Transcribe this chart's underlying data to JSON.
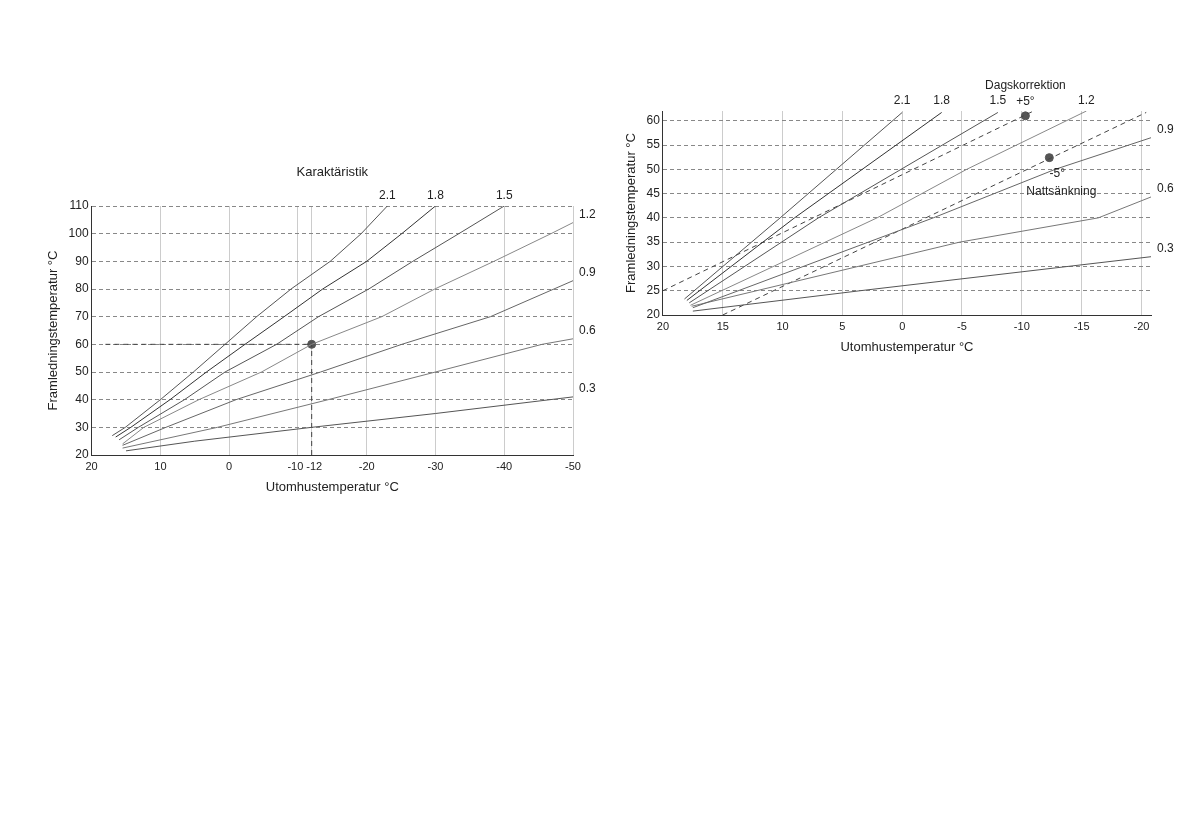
{
  "chart_data": [
    {
      "type": "line",
      "xlabel": "Utomhustemperatur °C",
      "ylabel": "Framledningstemperatur °C",
      "xlim": [
        20,
        -50
      ],
      "xticks": [
        20,
        10,
        0,
        -10,
        -12,
        -20,
        -30,
        -40,
        -50
      ],
      "ylim": [
        20,
        110
      ],
      "yticks": [
        20,
        30,
        40,
        50,
        60,
        70,
        80,
        90,
        100,
        110
      ],
      "grid": true,
      "marker": "none",
      "annotations": [
        "Karaktäristik"
      ],
      "series": [
        {
          "name": "2.1",
          "color": "#555555",
          "x": [
            17,
            15.1,
            10,
            5.2,
            0.6,
            -4,
            -9,
            -14.7,
            -19.2,
            -23
          ],
          "values": [
            27,
            30,
            40,
            50,
            60,
            70,
            80,
            90,
            100,
            110
          ]
        },
        {
          "name": "1.8",
          "color": "#333333",
          "x": [
            16.5,
            14.3,
            8.6,
            3.3,
            -2.3,
            -8,
            -13.6,
            -20,
            -25.1,
            -30
          ],
          "values": [
            26.5,
            30,
            40,
            50,
            60,
            70,
            80,
            90,
            100,
            110
          ]
        },
        {
          "name": "1.5",
          "color": "#555555",
          "x": [
            16,
            13.2,
            6.5,
            0.6,
            -6.9,
            -13,
            -20.3,
            -26.7,
            -33.4,
            -40
          ],
          "values": [
            25.5,
            30,
            40,
            50,
            60,
            70,
            80,
            90,
            100,
            110
          ]
        },
        {
          "name": "1.2",
          "color": "#888888",
          "x": [
            15.5,
            12.4,
            4.4,
            -4.7,
            -12,
            -22.2,
            -29.9,
            -38.5,
            -46.8,
            -50
          ],
          "values": [
            24,
            30,
            40,
            50,
            60,
            70,
            80,
            90,
            100,
            104
          ]
        },
        {
          "name": "0.9",
          "color": "#666666",
          "x": [
            15.5,
            9.2,
            -1,
            -13.3,
            -25.1,
            -38,
            -50
          ],
          "values": [
            23.5,
            30,
            40,
            50,
            60,
            70,
            83
          ]
        },
        {
          "name": "0.6",
          "color": "#777777",
          "x": [
            15.5,
            1.7,
            -14.4,
            -30,
            -45.5,
            -50
          ],
          "values": [
            22.5,
            30,
            40,
            50,
            60,
            62
          ]
        },
        {
          "name": "0.3",
          "color": "#555555",
          "x": [
            15,
            5,
            -12,
            -30,
            -50
          ],
          "values": [
            21.5,
            25,
            30,
            35,
            41
          ]
        },
        {
          "type": "line",
          "line_style": "dashed",
          "color": "#444444",
          "x": [
            18,
            -12
          ],
          "values": [
            60,
            60
          ]
        },
        {
          "type": "line",
          "line_style": "dashed",
          "color": "#444444",
          "x": [
            -12,
            -12
          ],
          "values": [
            20,
            60
          ]
        },
        {
          "type": "scatter",
          "marker": "circle",
          "color": "#555555",
          "x": [
            -12
          ],
          "values": [
            60
          ]
        }
      ]
    },
    {
      "type": "line",
      "xlabel": "Utomhustemperatur °C",
      "ylabel": "Framledningstemperatur °C",
      "xlim": [
        20,
        -20.8
      ],
      "xticks": [
        20,
        15,
        10,
        5,
        0,
        -5,
        -10,
        -15,
        -20
      ],
      "ylim": [
        20,
        62
      ],
      "yticks": [
        20,
        25,
        30,
        35,
        40,
        45,
        50,
        55,
        60
      ],
      "grid": true,
      "marker": "none",
      "annotations": [
        "Dagskorrektion",
        "Nattsänkning",
        {
          "text": "+5°",
          "x": -10.3,
          "y": 61
        },
        {
          "text": "-5°",
          "x": -12.3,
          "y": 52.4
        }
      ],
      "series": [
        {
          "name": "2.1",
          "color": "#555555",
          "x": [
            18.2,
            10.2,
            0
          ],
          "values": [
            23.3,
            40,
            61.7
          ]
        },
        {
          "name": "1.8",
          "color": "#333333",
          "x": [
            18,
            9,
            -3.3
          ],
          "values": [
            23,
            40,
            61.7
          ]
        },
        {
          "name": "1.5",
          "color": "#555555",
          "x": [
            17.8,
            7,
            -8
          ],
          "values": [
            22.5,
            40,
            61.7
          ]
        },
        {
          "name": "1.2",
          "color": "#888888",
          "x": [
            17.7,
            2.1,
            -5.4,
            -15.4
          ],
          "values": [
            22,
            40,
            50,
            62
          ]
        },
        {
          "name": "0.9",
          "color": "#666666",
          "x": [
            17.5,
            -2.6,
            -12.8,
            -20.8
          ],
          "values": [
            21.5,
            40,
            50,
            56.5
          ]
        },
        {
          "name": "0.6",
          "color": "#777777",
          "x": [
            17.6,
            -4.8,
            -16.4,
            -20.8
          ],
          "values": [
            21.8,
            35,
            40,
            44.3
          ]
        },
        {
          "name": "0.3",
          "color": "#555555",
          "x": [
            17.5,
            3.5,
            -20.8
          ],
          "values": [
            20.8,
            25,
            32
          ]
        },
        {
          "type": "line",
          "line_style": "dashed",
          "color": "#444444",
          "x": [
            20,
            -10.9
          ],
          "values": [
            25,
            61.9
          ]
        },
        {
          "type": "line",
          "line_style": "dashed",
          "color": "#444444",
          "x": [
            15,
            -20.4
          ],
          "values": [
            20,
            61.7
          ]
        },
        {
          "type": "scatter",
          "marker": "circle",
          "color": "#555555",
          "x": [
            -10.3,
            -12.3
          ],
          "values": [
            61,
            52.4
          ]
        }
      ]
    }
  ]
}
